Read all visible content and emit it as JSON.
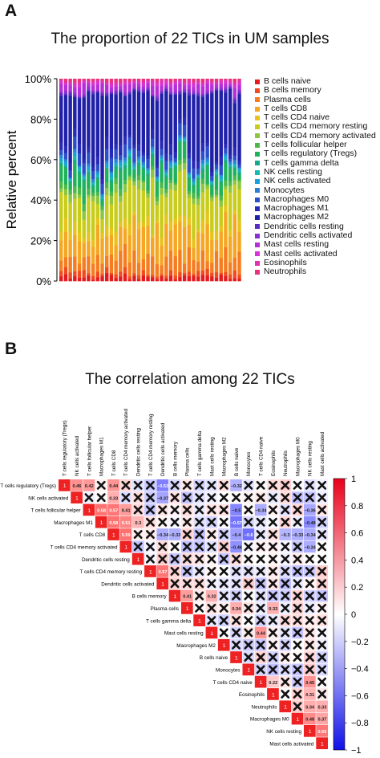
{
  "panels": {
    "a": {
      "letter": "A",
      "title": "The proportion of 22 TICs in UM samples"
    },
    "b": {
      "letter": "B",
      "title": "The correlation among 22 TICs"
    }
  },
  "chart_data": [
    {
      "type": "bar",
      "stacked": true,
      "title": "The proportion of 22 TICs in UM samples",
      "xlabel": "",
      "ylabel": "Relative percent",
      "ylim": [
        0,
        1
      ],
      "yticks": [
        "0%",
        "20%",
        "40%",
        "60%",
        "80%",
        "100%"
      ],
      "n_samples": 40,
      "legend_position": "right",
      "series": [
        {
          "name": "B cells naive",
          "color": "#e41a1c"
        },
        {
          "name": "B cells memory",
          "color": "#f04a1e"
        },
        {
          "name": "Plasma cells",
          "color": "#f57c20"
        },
        {
          "name": "T cells CD8",
          "color": "#f5a623"
        },
        {
          "name": "T cells CD4 naive",
          "color": "#e8c31c"
        },
        {
          "name": "T cells CD4 memory resting",
          "color": "#c8cc1a"
        },
        {
          "name": "T cells CD4 memory activated",
          "color": "#8cc63f"
        },
        {
          "name": "T cells follicular helper",
          "color": "#4cb848"
        },
        {
          "name": "T cells regulatory (Tregs)",
          "color": "#1fb25a"
        },
        {
          "name": "T cells gamma delta",
          "color": "#16a88a"
        },
        {
          "name": "NK cells resting",
          "color": "#17b8b0"
        },
        {
          "name": "NK cells activated",
          "color": "#1aa0d8"
        },
        {
          "name": "Monocytes",
          "color": "#2a7fd4"
        },
        {
          "name": "Macrophages M0",
          "color": "#2b4fc9"
        },
        {
          "name": "Macrophages M1",
          "color": "#2a2ab8"
        },
        {
          "name": "Macrophages M2",
          "color": "#2020a8"
        },
        {
          "name": "Dendritic cells resting",
          "color": "#5a2bc2"
        },
        {
          "name": "Dendritic cells activated",
          "color": "#8a2fd0"
        },
        {
          "name": "Mast cells resting",
          "color": "#b42fd6"
        },
        {
          "name": "Mast cells activated",
          "color": "#d633d6"
        },
        {
          "name": "Eosinophils",
          "color": "#e033b0"
        },
        {
          "name": "Neutrophils",
          "color": "#e8337a"
        }
      ]
    },
    {
      "type": "heatmap",
      "title": "The correlation among 22 TICs",
      "labels": [
        "T cells regulatory (Tregs)",
        "NK cells activated",
        "T cells follicular helper",
        "Macrophages M1",
        "T cells CD8",
        "T cells CD4 memory activated",
        "Dendritic cells resting",
        "T cells CD4 memory resting",
        "Dendritic cells activated",
        "B cells memory",
        "Plasma cells",
        "T cells gamma delta",
        "Mast cells resting",
        "Macrophages M2",
        "B cells naive",
        "Monocytes",
        "T cells CD4 naive",
        "Eosinophils",
        "Neutrophils",
        "Macrophages M0",
        "NK cells resting",
        "Mast cells activated"
      ],
      "colorbar_ticks": [
        "1",
        "0.8",
        "0.6",
        "0.4",
        "0.2",
        "0",
        "−0.2",
        "−0.4",
        "−0.6",
        "−0.8",
        "−1"
      ],
      "significant_values": [
        {
          "row": 0,
          "col": 1,
          "value": "0.46"
        },
        {
          "row": 0,
          "col": 2,
          "value": "0.42"
        },
        {
          "row": 0,
          "col": 4,
          "value": "0.44"
        },
        {
          "row": 0,
          "col": 8,
          "value": "−0.53"
        },
        {
          "row": 0,
          "col": 14,
          "value": "−0.32"
        },
        {
          "row": 1,
          "col": 4,
          "value": "0.33"
        },
        {
          "row": 1,
          "col": 8,
          "value": "−0.37"
        },
        {
          "row": 2,
          "col": 3,
          "value": "0.58"
        },
        {
          "row": 2,
          "col": 4,
          "value": "0.57"
        },
        {
          "row": 2,
          "col": 5,
          "value": "0.41"
        },
        {
          "row": 2,
          "col": 14,
          "value": "−0.5"
        },
        {
          "row": 2,
          "col": 16,
          "value": "−0.34"
        },
        {
          "row": 2,
          "col": 20,
          "value": "−0.36"
        },
        {
          "row": 3,
          "col": 4,
          "value": "0.58"
        },
        {
          "row": 3,
          "col": 5,
          "value": "0.51"
        },
        {
          "row": 3,
          "col": 6,
          "value": "0.3"
        },
        {
          "row": 3,
          "col": 14,
          "value": "−0.57"
        },
        {
          "row": 3,
          "col": 20,
          "value": "−0.48"
        },
        {
          "row": 4,
          "col": 5,
          "value": "0.59"
        },
        {
          "row": 4,
          "col": 8,
          "value": "−0.34"
        },
        {
          "row": 4,
          "col": 9,
          "value": "−0.33"
        },
        {
          "row": 4,
          "col": 14,
          "value": "−0.4"
        },
        {
          "row": 4,
          "col": 15,
          "value": "−0.6"
        },
        {
          "row": 4,
          "col": 18,
          "value": "−0.3"
        },
        {
          "row": 4,
          "col": 19,
          "value": "−0.33"
        },
        {
          "row": 4,
          "col": 20,
          "value": "−0.34"
        },
        {
          "row": 5,
          "col": 14,
          "value": "−0.46"
        },
        {
          "row": 5,
          "col": 20,
          "value": "−0.34"
        },
        {
          "row": 7,
          "col": 8,
          "value": "0.57"
        },
        {
          "row": 9,
          "col": 10,
          "value": "0.41"
        },
        {
          "row": 9,
          "col": 12,
          "value": "0.32"
        },
        {
          "row": 10,
          "col": 14,
          "value": "0.34"
        },
        {
          "row": 10,
          "col": 17,
          "value": "0.33"
        },
        {
          "row": 12,
          "col": 16,
          "value": "0.44"
        },
        {
          "row": 16,
          "col": 17,
          "value": "0.22"
        },
        {
          "row": 16,
          "col": 20,
          "value": "0.45"
        },
        {
          "row": 17,
          "col": 20,
          "value": "0.31"
        },
        {
          "row": 18,
          "col": 20,
          "value": "0.34"
        },
        {
          "row": 18,
          "col": 21,
          "value": "0.33"
        },
        {
          "row": 19,
          "col": 20,
          "value": "0.48"
        },
        {
          "row": 19,
          "col": 21,
          "value": "0.37"
        },
        {
          "row": 20,
          "col": 21,
          "value": "0.56"
        }
      ]
    }
  ]
}
